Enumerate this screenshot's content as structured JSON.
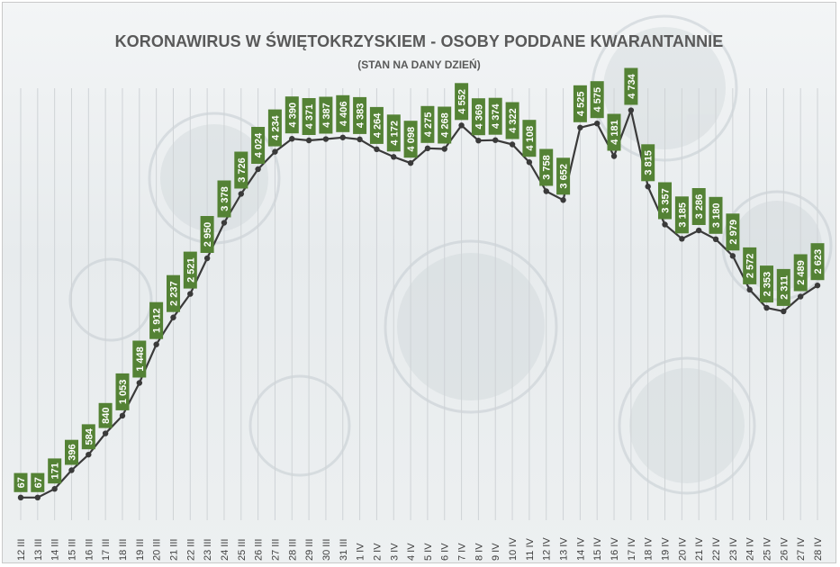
{
  "chart_data": {
    "type": "line",
    "title": "KORONAWIRUS W ŚWIĘTOKRZYSKIEM - OSOBY PODDANE KWARANTANNIE",
    "subtitle": "(STAN NA DANY DZIEŃ)",
    "categories": [
      "12 III",
      "13 III",
      "14 III",
      "15 III",
      "16 III",
      "17 III",
      "18 III",
      "19 III",
      "20 III",
      "21 III",
      "22 III",
      "23 III",
      "24 III",
      "25 III",
      "26 III",
      "27 III",
      "28 III",
      "29 III",
      "30 III",
      "31 III",
      "1 IV",
      "2 IV",
      "3 IV",
      "4 IV",
      "5 IV",
      "6 IV",
      "7 IV",
      "8 IV",
      "9 IV",
      "10 IV",
      "11 IV",
      "12 IV",
      "13 IV",
      "14 IV",
      "15 IV",
      "16 IV",
      "17 IV",
      "18 IV",
      "19 IV",
      "20 IV",
      "21 IV",
      "22 IV",
      "23 IV",
      "24 IV",
      "25 IV",
      "26 IV",
      "27 IV",
      "28 IV"
    ],
    "values": [
      67,
      67,
      171,
      396,
      584,
      840,
      1053,
      1448,
      1912,
      2237,
      2521,
      2950,
      3378,
      3726,
      4024,
      4234,
      4390,
      4371,
      4387,
      4406,
      4383,
      4264,
      4172,
      4098,
      4275,
      4268,
      4552,
      4369,
      4374,
      4322,
      4108,
      3758,
      3652,
      4525,
      4575,
      4181,
      4734,
      3815,
      3357,
      3185,
      3286,
      3180,
      2979,
      2572,
      2353,
      2311,
      2489,
      2623
    ],
    "labels": [
      "67",
      "67",
      "171",
      "396",
      "584",
      "840",
      "1 053",
      "1 448",
      "1 912",
      "2 237",
      "2 521",
      "2 950",
      "3 378",
      "3 726",
      "4 024",
      "4 234",
      "4 390",
      "4 371",
      "4 387",
      "4 406",
      "4 383",
      "4 264",
      "4 172",
      "4 098",
      "4 275",
      "4 268",
      "4 552",
      "4 369",
      "4 374",
      "4 322",
      "4 108",
      "3 758",
      "3 652",
      "4 525",
      "4 575",
      "4 181",
      "4 734",
      "3 815",
      "3 357",
      "3 185",
      "3 286",
      "3 180",
      "2 979",
      "2 572",
      "2 353",
      "2 311",
      "2 489",
      "2 623"
    ],
    "ylim": [
      0,
      5000
    ],
    "grid": "vertical",
    "legend": "none",
    "colors": {
      "line": "#3a3a3a",
      "label_bg": "#548235",
      "label_text": "#ffffff",
      "axis_text": "#404040",
      "gridline": "#cfd3d6"
    }
  }
}
